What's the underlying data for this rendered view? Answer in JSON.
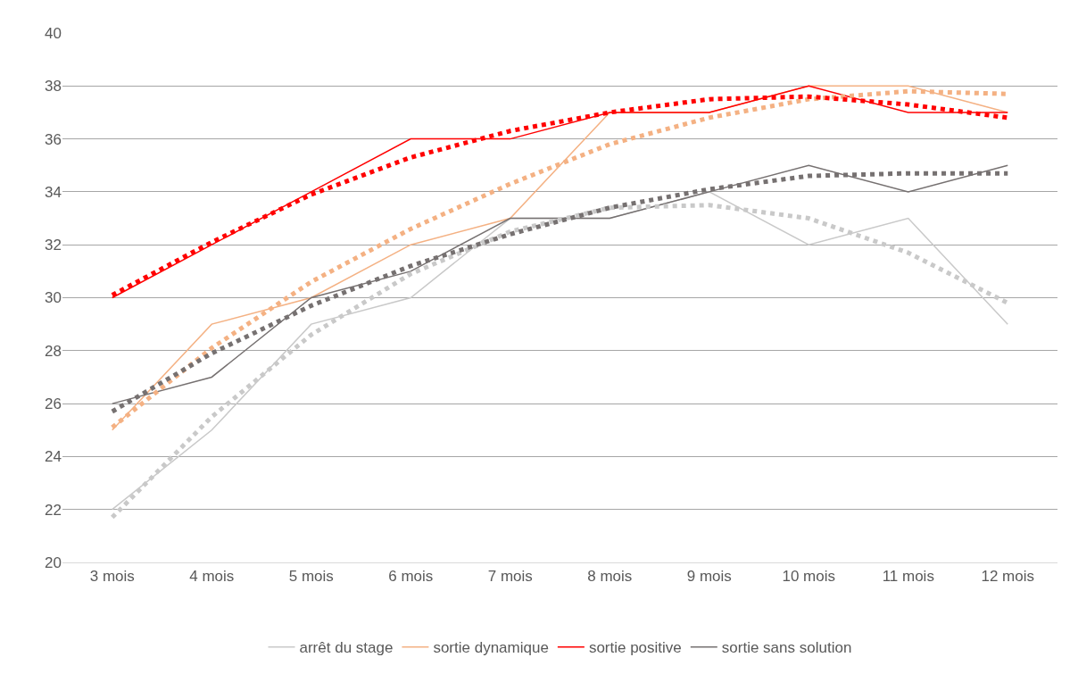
{
  "chart_data": {
    "type": "line",
    "categories": [
      "3 mois",
      "4 mois",
      "5 mois",
      "6 mois",
      "7 mois",
      "8 mois",
      "9 mois",
      "10 mois",
      "11 mois",
      "12 mois"
    ],
    "series": [
      {
        "name": "arrêt du stage",
        "color": "#c9c9c9",
        "values": [
          22,
          25,
          29,
          30,
          33,
          33,
          34,
          32,
          33,
          29
        ]
      },
      {
        "name": "sortie dynamique",
        "color": "#f4b183",
        "values": [
          25,
          29,
          30,
          32,
          33,
          37,
          37,
          38,
          38,
          37
        ]
      },
      {
        "name": "sortie positive",
        "color": "#ff0000",
        "values": [
          30,
          32,
          34,
          36,
          36,
          37,
          37,
          38,
          37,
          37
        ]
      },
      {
        "name": "sortie sans solution",
        "color": "#767171",
        "values": [
          26,
          27,
          30,
          31,
          33,
          33,
          34,
          35,
          34,
          35
        ]
      },
      {
        "color": "#c9c9c9",
        "line_style": "dotted",
        "values": [
          21.7,
          25.5,
          28.6,
          30.9,
          32.5,
          33.4,
          33.5,
          33.0,
          31.7,
          29.8
        ]
      },
      {
        "color": "#f4b183",
        "line_style": "dotted",
        "values": [
          25.1,
          28.1,
          30.6,
          32.6,
          34.3,
          35.8,
          36.8,
          37.5,
          37.8,
          37.7
        ]
      },
      {
        "color": "#ff0000",
        "line_style": "dotted",
        "values": [
          30.1,
          32.1,
          33.9,
          35.3,
          36.3,
          37.0,
          37.5,
          37.6,
          37.3,
          36.8
        ]
      },
      {
        "color": "#767171",
        "line_style": "dotted",
        "values": [
          25.7,
          27.9,
          29.7,
          31.2,
          32.4,
          33.4,
          34.1,
          34.6,
          34.7,
          34.7
        ]
      }
    ],
    "ylim": [
      20,
      40
    ],
    "yticks": [
      20,
      22,
      24,
      26,
      28,
      30,
      32,
      34,
      36,
      38,
      40
    ],
    "grid": "y",
    "legend": "bottom",
    "marker": "none",
    "line_style": "solid"
  }
}
